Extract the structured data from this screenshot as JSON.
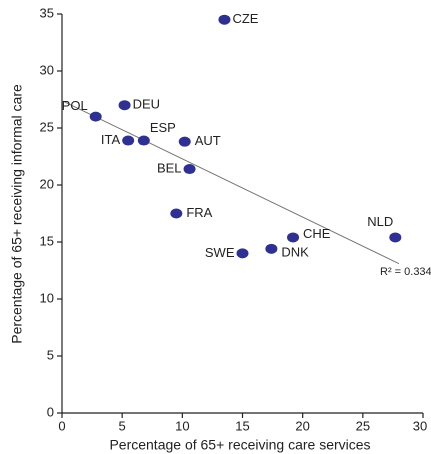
{
  "chart_data": {
    "type": "scatter",
    "xlabel": "Percentage of 65+ receiving care services",
    "ylabel": "Percentage of 65+ receiving informal care",
    "series": [
      {
        "name": null,
        "color": "#2e3192",
        "labels": [
          "CZE",
          "POL",
          "DEU",
          "ITA",
          "ESP",
          "AUT",
          "BEL",
          "FRA",
          "SWE",
          "DNK",
          "CHE",
          "NLD"
        ],
        "x": [
          13.5,
          2.8,
          5.2,
          5.5,
          6.8,
          10.2,
          10.6,
          9.5,
          15.0,
          17.4,
          19.2,
          27.7
        ],
        "values": [
          34.5,
          26,
          27,
          23.9,
          23.9,
          23.8,
          21.4,
          17.5,
          14.0,
          14.4,
          15.4,
          15.4
        ]
      }
    ],
    "trendline": {
      "x": [
        0,
        28
      ],
      "y": [
        27.4,
        13.1
      ],
      "color": "#777"
    },
    "annotation": "R² = 0.334*",
    "xlim": [
      0,
      30
    ],
    "xticks": [
      0,
      5,
      10,
      15,
      20,
      25,
      30
    ],
    "ylim": [
      0,
      35
    ],
    "yticks": [
      0,
      5,
      10,
      15,
      20,
      25,
      30,
      35
    ]
  }
}
